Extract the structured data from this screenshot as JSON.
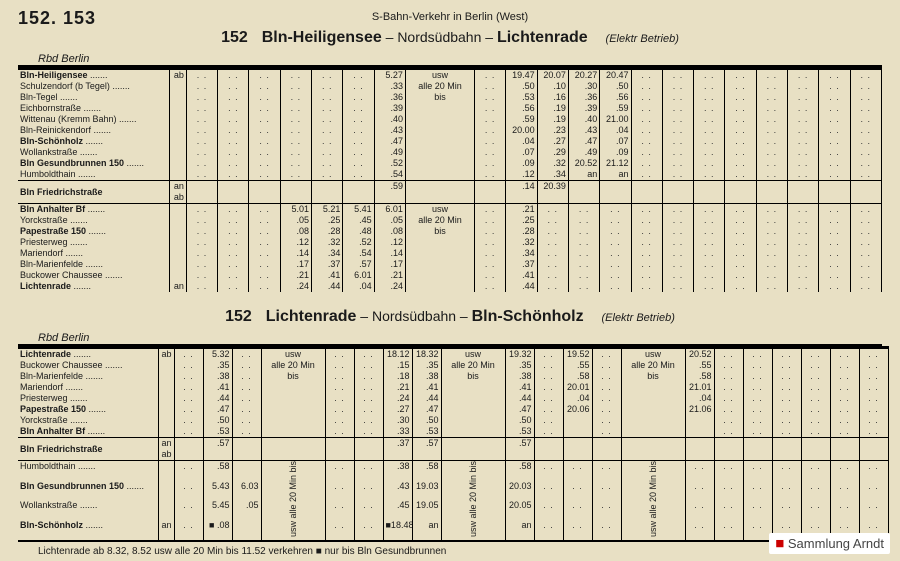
{
  "pageNumbers": "152. 153",
  "header": "S-Bahn-Verkehr in Berlin (West)",
  "watermark": "Sammlung Arndt",
  "footnote": "Lichtenrade ab 8.32, 8.52 usw alle 20 Min bis 11.52 verkehren   ■ nur bis Bln Gesundbrunnen",
  "routes": [
    {
      "num": "152",
      "from": "Bln-Heiligensee",
      "via": "Nordsüdbahn",
      "to": "Lichtenrade",
      "betrieb": "(Elektr Betrieb)",
      "rbd": "Rbd Berlin"
    },
    {
      "num": "152",
      "from": "Lichtenrade",
      "via": "Nordsüdbahn",
      "to": "Bln-Schönholz",
      "betrieb": "(Elektr Betrieb)",
      "rbd": "Rbd Berlin"
    }
  ],
  "table1": {
    "usw": "usw\nalle 20 Min\nbis",
    "stations_top": [
      {
        "n": "Bln-Heiligensee",
        "b": true,
        "a": "ab"
      },
      {
        "n": "Schulzendorf (b Tegel)",
        "b": false,
        "a": ""
      },
      {
        "n": "Bln-Tegel",
        "b": false,
        "a": ""
      },
      {
        "n": "Eichbornstraße",
        "b": false,
        "a": ""
      },
      {
        "n": "Wittenau (Kremm Bahn)",
        "b": false,
        "a": ""
      },
      {
        "n": "Bln-Reinickendorf",
        "b": false,
        "a": ""
      },
      {
        "n": "Bln-Schönholz",
        "b": true,
        "a": ""
      },
      {
        "n": "Wollankstraße",
        "b": false,
        "a": ""
      },
      {
        "n": "Bln Gesundbrunnen 150",
        "b": true,
        "a": ""
      },
      {
        "n": "Humboldthain",
        "b": false,
        "a": ""
      }
    ],
    "station_split": {
      "n": "Bln Friedrichstraße",
      "b": true,
      "a_an": "an",
      "a_ab": "ab"
    },
    "stations_bot": [
      {
        "n": "Bln Anhalter Bf",
        "b": true,
        "a": ""
      },
      {
        "n": "Yorckstraße",
        "b": false,
        "a": ""
      },
      {
        "n": "Papestraße 150",
        "b": true,
        "a": ""
      },
      {
        "n": "Priesterweg",
        "b": false,
        "a": ""
      },
      {
        "n": "Mariendorf",
        "b": false,
        "a": ""
      },
      {
        "n": "Bln-Marienfelde",
        "b": false,
        "a": ""
      },
      {
        "n": "Buckower Chaussee",
        "b": false,
        "a": ""
      },
      {
        "n": "Lichtenrade",
        "b": true,
        "a": "an"
      }
    ],
    "cols_top": [
      [
        "…",
        "…",
        "…",
        "…",
        "…",
        "…",
        "…",
        "…",
        "…",
        "…"
      ],
      [
        "…",
        "…",
        "…",
        "…",
        "…",
        "…",
        "…",
        "…",
        "…",
        "…"
      ],
      [
        "…",
        "…",
        "…",
        "…",
        "…",
        "…",
        "…",
        "…",
        "…",
        "…"
      ],
      [
        "…",
        "…",
        "…",
        "…",
        "…",
        "…",
        "…",
        "…",
        "…",
        "…"
      ],
      [
        "…",
        "…",
        "…",
        "…",
        "…",
        "…",
        "…",
        "…",
        "…",
        "…"
      ],
      [
        "…",
        "…",
        "…",
        "…",
        "…",
        "…",
        "…",
        "…",
        "…",
        "…"
      ],
      [
        "5.27",
        ".33",
        ".36",
        ".39",
        ".40",
        ".43",
        ".47",
        ".49",
        ".52",
        ".54",
        ".59"
      ],
      [],
      [
        "…",
        "…",
        "…",
        "…",
        "…",
        "…",
        "…",
        "…",
        "…",
        "…"
      ],
      [
        "19.47",
        ".50",
        ".53",
        ".56",
        ".59",
        "20.00",
        ".04",
        ".07",
        ".09",
        ".12",
        ".14",
        ".19"
      ],
      [
        "20.07",
        ".10",
        ".16",
        ".19",
        ".19",
        ".23",
        ".27",
        ".29",
        ".32",
        ".34",
        "20.39"
      ],
      [
        "20.27",
        ".30",
        ".36",
        ".39",
        ".40",
        ".43",
        ".47",
        ".49",
        "20.52",
        "an"
      ],
      [
        "20.47",
        ".50",
        ".56",
        ".59",
        "21.00",
        ".04",
        ".07",
        ".09",
        "21.12",
        "an"
      ],
      [
        "…",
        "…",
        "…",
        "…",
        "…",
        "…",
        "…",
        "…",
        "…",
        "…"
      ],
      [
        "…",
        "…",
        "…",
        "…",
        "…",
        "…",
        "…",
        "…",
        "…",
        "…"
      ],
      [
        "…",
        "…",
        "…",
        "…",
        "…",
        "…",
        "…",
        "…",
        "…",
        "…"
      ],
      [
        "…",
        "…",
        "…",
        "…",
        "…",
        "…",
        "…",
        "…",
        "…",
        "…"
      ],
      [
        "…",
        "…",
        "…",
        "…",
        "…",
        "…",
        "…",
        "…",
        "…",
        "…"
      ],
      [
        "…",
        "…",
        "…",
        "…",
        "…",
        "…",
        "…",
        "…",
        "…",
        "…"
      ],
      [
        "…",
        "…",
        "…",
        "…",
        "…",
        "…",
        "…",
        "…",
        "…",
        "…"
      ],
      [
        "…",
        "…",
        "…",
        "…",
        "…",
        "…",
        "…",
        "…",
        "…",
        "…"
      ]
    ],
    "cols_bot": [
      [
        "…",
        "…",
        "…",
        "…",
        "…",
        "…",
        "…",
        "…",
        "…"
      ],
      [
        "…",
        "…",
        "…",
        "…",
        "…",
        "…",
        "…",
        "…",
        "…"
      ],
      [
        "…",
        "…",
        "…",
        "…",
        "…",
        "…",
        "…",
        "…",
        "…"
      ],
      [
        "5.01",
        ".05",
        ".08",
        ".12",
        ".14",
        ".17",
        ".21",
        ".24",
        "5.27"
      ],
      [
        "5.21",
        ".25",
        ".28",
        ".32",
        ".34",
        ".37",
        ".41",
        ".44",
        "5.47"
      ],
      [
        "5.41",
        ".45",
        ".48",
        ".52",
        ".54",
        ".57",
        "6.01",
        ".04",
        "6.07"
      ],
      [
        "6.01",
        ".05",
        ".08",
        ".12",
        ".14",
        ".17",
        ".21",
        ".24",
        "6.27"
      ],
      [],
      [
        "…",
        "…",
        "…",
        "…",
        "…",
        "…",
        "…",
        "…",
        "…"
      ],
      [
        ".21",
        ".25",
        ".28",
        ".32",
        ".34",
        ".37",
        ".41",
        ".44",
        "20.47"
      ],
      [
        "…",
        "…",
        "…",
        "…",
        "…",
        "…",
        "…",
        "…",
        "…"
      ],
      [
        "…",
        "…",
        "…",
        "…",
        "…",
        "…",
        "…",
        "…",
        "…"
      ],
      [
        "…",
        "…",
        "…",
        "…",
        "…",
        "…",
        "…",
        "…",
        "…"
      ],
      [
        "…",
        "…",
        "…",
        "…",
        "…",
        "…",
        "…",
        "…",
        "…"
      ],
      [
        "…",
        "…",
        "…",
        "…",
        "…",
        "…",
        "…",
        "…",
        "…"
      ],
      [
        "…",
        "…",
        "…",
        "…",
        "…",
        "…",
        "…",
        "…",
        "…"
      ],
      [
        "…",
        "…",
        "…",
        "…",
        "…",
        "…",
        "…",
        "…",
        "…"
      ],
      [
        "…",
        "…",
        "…",
        "…",
        "…",
        "…",
        "…",
        "…",
        "…"
      ],
      [
        "…",
        "…",
        "…",
        "…",
        "…",
        "…",
        "…",
        "…",
        "…"
      ],
      [
        "…",
        "…",
        "…",
        "…",
        "…",
        "…",
        "…",
        "…",
        "…"
      ],
      [
        "…",
        "…",
        "…",
        "…",
        "…",
        "…",
        "…",
        "…",
        "…"
      ]
    ]
  },
  "table2": {
    "usw": "usw\nalle 20 Min\nbis",
    "vert": "usw alle 20 Min bis",
    "stations_top": [
      {
        "n": "Lichtenrade",
        "b": true,
        "a": "ab"
      },
      {
        "n": "Buckower Chaussee",
        "b": false,
        "a": ""
      },
      {
        "n": "Bln-Marienfelde",
        "b": false,
        "a": ""
      },
      {
        "n": "Mariendorf",
        "b": false,
        "a": ""
      },
      {
        "n": "Priesterweg",
        "b": false,
        "a": ""
      },
      {
        "n": "Papestraße 150",
        "b": true,
        "a": ""
      },
      {
        "n": "Yorckstraße",
        "b": false,
        "a": ""
      },
      {
        "n": "Bln Anhalter Bf",
        "b": true,
        "a": ""
      }
    ],
    "station_split": {
      "n": "Bln Friedrichstraße",
      "b": true,
      "a_an": "an",
      "a_ab": "ab"
    },
    "stations_bot": [
      {
        "n": "Humboldthain",
        "b": false,
        "a": ""
      },
      {
        "n": "Bln Gesundbrunnen 150",
        "b": true,
        "a": ""
      },
      {
        "n": "Wollankstraße",
        "b": false,
        "a": ""
      },
      {
        "n": "Bln-Schönholz",
        "b": true,
        "a": "an"
      }
    ],
    "cols_top": [
      [
        "…",
        "…",
        "…",
        "…",
        "…",
        "…",
        "…",
        "…"
      ],
      [
        "5.32",
        ".35",
        ".38",
        ".41",
        ".44",
        ".47",
        ".50",
        ".53",
        ".57"
      ],
      [
        "…",
        "…",
        "…",
        "…",
        "…",
        "…",
        "…",
        "…"
      ],
      [],
      [
        "…",
        "…",
        "…",
        "…",
        "…",
        "…",
        "…",
        "…"
      ],
      [
        "…",
        "…",
        "…",
        "…",
        "…",
        "…",
        "…",
        "…"
      ],
      [
        "18.12",
        ".15",
        ".18",
        ".21",
        ".24",
        ".27",
        ".30",
        ".33",
        ".37"
      ],
      [
        "18.32",
        ".35",
        ".38",
        ".41",
        ".44",
        ".47",
        ".50",
        ".53",
        ".57"
      ],
      [],
      [
        "19.32",
        ".35",
        ".38",
        ".41",
        ".44",
        ".47",
        ".50",
        ".53",
        ".57"
      ],
      [
        "…",
        "…",
        "…",
        "…",
        "…",
        "…",
        "…",
        "…"
      ],
      [
        "19.52",
        ".55",
        ".58",
        "20.01",
        ".04",
        "20.06",
        "",
        ""
      ],
      [
        "…",
        "…",
        "…",
        "…",
        "…",
        "…",
        "…",
        "…"
      ],
      [],
      [
        "20.52",
        ".55",
        ".58",
        "21.01",
        ".04",
        "21.06",
        "",
        ""
      ],
      [
        "…",
        "…",
        "…",
        "…",
        "…",
        "…",
        "…",
        "…"
      ],
      [
        "…",
        "…",
        "…",
        "…",
        "…",
        "…",
        "…",
        "…"
      ],
      [
        "…",
        "…",
        "…",
        "…",
        "…",
        "…",
        "…",
        "…"
      ],
      [
        "…",
        "…",
        "…",
        "…",
        "…",
        "…",
        "…",
        "…"
      ],
      [
        "…",
        "…",
        "…",
        "…",
        "…",
        "…",
        "…",
        "…"
      ],
      [
        "…",
        "…",
        "…",
        "…",
        "…",
        "…",
        "…",
        "…"
      ]
    ],
    "cols_bot": [
      [
        "…",
        "…",
        "…",
        "…",
        "…"
      ],
      [
        ".58",
        "5.43",
        "5.45",
        "■ .08",
        "■6.10"
      ],
      [
        "",
        "6.03",
        ".05",
        "",
        ""
      ],
      [],
      [
        "…",
        "…",
        "…",
        "…",
        "…"
      ],
      [
        "…",
        "…",
        "…",
        "…",
        "…"
      ],
      [
        ".38",
        ".43",
        ".45",
        "■18.48",
        "■18.50"
      ],
      [
        ".58",
        "19.03",
        "19.05",
        "an",
        ""
      ],
      [],
      [
        ".58",
        "20.03",
        "20.05",
        "an",
        ""
      ],
      [
        "…",
        "…",
        "…",
        "…",
        "…"
      ],
      [
        "…",
        "…",
        "…",
        "…",
        "…"
      ],
      [
        "…",
        "…",
        "…",
        "…",
        "…"
      ],
      [],
      [
        "…",
        "…",
        "…",
        "…",
        "…"
      ],
      [
        "…",
        "…",
        "…",
        "…",
        "…"
      ],
      [
        "…",
        "…",
        "…",
        "…",
        "…"
      ],
      [
        "…",
        "…",
        "…",
        "…",
        "…"
      ],
      [
        "…",
        "…",
        "…",
        "…",
        "…"
      ],
      [
        "…",
        "…",
        "…",
        "…",
        "…"
      ],
      [
        "…",
        "…",
        "…",
        "…",
        "…"
      ]
    ]
  }
}
